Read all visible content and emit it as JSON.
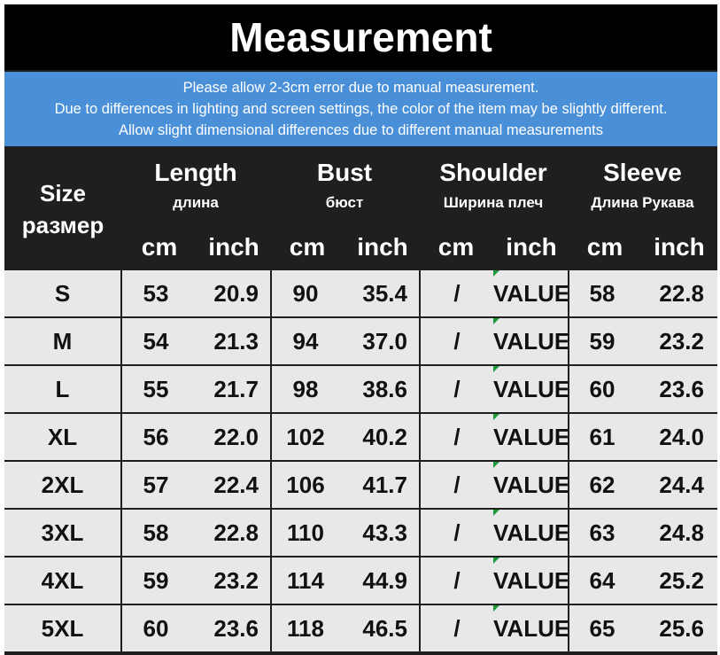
{
  "title": "Measurement",
  "notice": [
    "Please allow 2-3cm error due to manual measurement.",
    "Due to differences in lighting and screen settings, the color of the item may be slightly different.",
    "Allow slight dimensional differences due to different manual measurements"
  ],
  "header": {
    "size_en": "Size",
    "size_ru": "размер",
    "groups": [
      {
        "en": "Length",
        "ru": "длина"
      },
      {
        "en": "Bust",
        "ru": "бюст"
      },
      {
        "en": "Shoulder",
        "ru": "Ширина плеч"
      },
      {
        "en": "Sleeve",
        "ru": "Длина Рукава"
      }
    ],
    "unit_cm": "cm",
    "unit_inch": "inch"
  },
  "rows": [
    {
      "size": "S",
      "length_cm": "53",
      "length_inch": "20.9",
      "bust_cm": "90",
      "bust_inch": "35.4",
      "shoulder_cm": "/",
      "shoulder_inch": "VALUE",
      "sleeve_cm": "58",
      "sleeve_inch": "22.8"
    },
    {
      "size": "M",
      "length_cm": "54",
      "length_inch": "21.3",
      "bust_cm": "94",
      "bust_inch": "37.0",
      "shoulder_cm": "/",
      "shoulder_inch": "VALUE",
      "sleeve_cm": "59",
      "sleeve_inch": "23.2"
    },
    {
      "size": "L",
      "length_cm": "55",
      "length_inch": "21.7",
      "bust_cm": "98",
      "bust_inch": "38.6",
      "shoulder_cm": "/",
      "shoulder_inch": "VALUE",
      "sleeve_cm": "60",
      "sleeve_inch": "23.6"
    },
    {
      "size": "XL",
      "length_cm": "56",
      "length_inch": "22.0",
      "bust_cm": "102",
      "bust_inch": "40.2",
      "shoulder_cm": "/",
      "shoulder_inch": "VALUE",
      "sleeve_cm": "61",
      "sleeve_inch": "24.0"
    },
    {
      "size": "2XL",
      "length_cm": "57",
      "length_inch": "22.4",
      "bust_cm": "106",
      "bust_inch": "41.7",
      "shoulder_cm": "/",
      "shoulder_inch": "VALUE",
      "sleeve_cm": "62",
      "sleeve_inch": "24.4"
    },
    {
      "size": "3XL",
      "length_cm": "58",
      "length_inch": "22.8",
      "bust_cm": "110",
      "bust_inch": "43.3",
      "shoulder_cm": "/",
      "shoulder_inch": "VALUE",
      "sleeve_cm": "63",
      "sleeve_inch": "24.8"
    },
    {
      "size": "4XL",
      "length_cm": "59",
      "length_inch": "23.2",
      "bust_cm": "114",
      "bust_inch": "44.9",
      "shoulder_cm": "/",
      "shoulder_inch": "VALUE",
      "sleeve_cm": "64",
      "sleeve_inch": "25.2"
    },
    {
      "size": "5XL",
      "length_cm": "60",
      "length_inch": "23.6",
      "bust_cm": "118",
      "bust_inch": "46.5",
      "shoulder_cm": "/",
      "shoulder_inch": "VALUE",
      "sleeve_cm": "65",
      "sleeve_inch": "25.6"
    }
  ],
  "colors": {
    "header_bg": "#1f1f1f",
    "title_bg": "#000000",
    "notice_bg": "#4a90d9",
    "cell_bg": "#e8e8e8",
    "marker": "#1a9a3a"
  }
}
